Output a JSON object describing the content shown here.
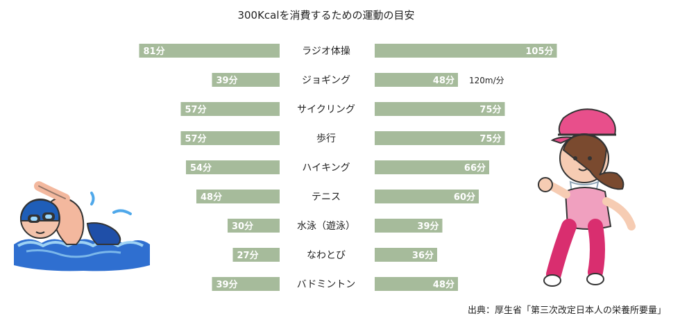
{
  "chart_data": {
    "type": "bar",
    "title": "300Kcalを消費するための運動の目安",
    "categories": [
      "ラジオ体操",
      "ジョギング",
      "サイクリング",
      "歩行",
      "ハイキング",
      "テニス",
      "水泳（遊泳）",
      "なわとび",
      "バドミントン"
    ],
    "series": [
      {
        "values": [
          81,
          39,
          57,
          57,
          54,
          48,
          30,
          27,
          39
        ]
      },
      {
        "values": [
          105,
          48,
          75,
          75,
          66,
          60,
          39,
          36,
          48
        ]
      }
    ],
    "value_suffix": "分",
    "annotations": [
      {
        "category": "ジョギング",
        "text": "120m/分"
      }
    ],
    "source": "出典：厚生省「第三次改定日本人の栄養所要量」",
    "layout": "mirrored horizontal bars, left and right series around central category labels",
    "grid": false,
    "colors": {
      "bar": "#a6bb9b",
      "bar_label": "#ffffff"
    }
  },
  "illustrations": {
    "left": "swimmer-illustration",
    "right": "runner-illustration"
  }
}
